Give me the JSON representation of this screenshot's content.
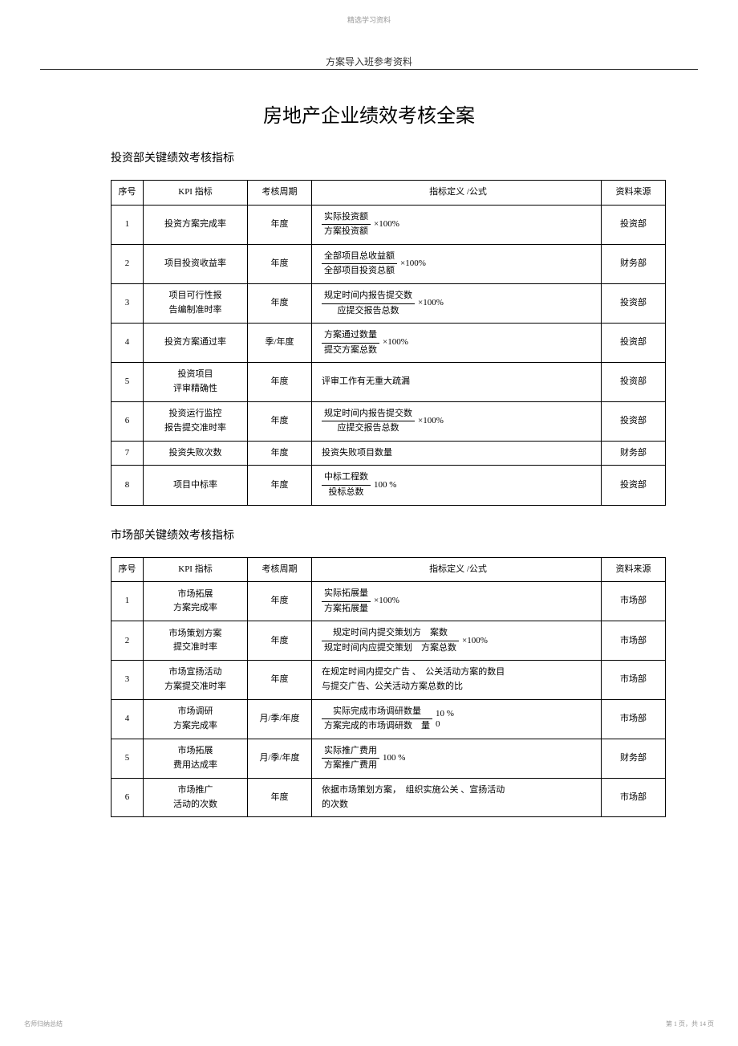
{
  "watermark_top": "精选学习资料",
  "header_center": "方案导入班参考资料",
  "main_title": "房地产企业绩效考核全案",
  "footer_left": "名师归纳总结",
  "footer_right": "第 1 页，共 14 页",
  "section1": {
    "title": "投资部关键绩效考核指标",
    "headers": {
      "num": "序号",
      "kpi": "KPI 指标",
      "period": "考核周期",
      "formula": "指标定义 /公式",
      "source": "资料来源"
    },
    "rows": [
      {
        "n": "1",
        "kpi": "投资方案完成率",
        "period": "年度",
        "frac_num": "实际投资额",
        "frac_den": "方案投资额",
        "mult": "×100%",
        "source": "投资部"
      },
      {
        "n": "2",
        "kpi": "项目投资收益率",
        "period": "年度",
        "frac_num": "全部项目总收益额",
        "frac_den": "全部项目投资总额",
        "mult": "×100%",
        "source": "财务部"
      },
      {
        "n": "3",
        "kpi_l1": "项目可行性报",
        "kpi_l2": "告编制准时率",
        "period": "年度",
        "frac_num": "规定时间内报告提交数",
        "frac_den": "应提交报告总数",
        "mult": "×100%",
        "source": "投资部"
      },
      {
        "n": "4",
        "kpi": "投资方案通过率",
        "period": "季/年度",
        "frac_num": "方案通过数量",
        "frac_den": "提交方案总数",
        "mult": "×100%",
        "source": "投资部"
      },
      {
        "n": "5",
        "kpi_l1": "投资项目",
        "kpi_l2": "评审精确性",
        "period": "年度",
        "text": "评审工作有无重大疏漏",
        "source": "投资部"
      },
      {
        "n": "6",
        "kpi_l1": "投资运行监控",
        "kpi_l2": "报告提交准时率",
        "period": "年度",
        "frac_num": "规定时间内报告提交数",
        "frac_den": "应提交报告总数",
        "mult": "×100%",
        "source": "投资部"
      },
      {
        "n": "7",
        "kpi": "投资失败次数",
        "period": "年度",
        "text": "投资失败项目数量",
        "source": "财务部"
      },
      {
        "n": "8",
        "kpi": "项目中标率",
        "period": "年度",
        "frac_num": "中标工程数",
        "frac_den": "投标总数",
        "mult": "100 %",
        "source": "投资部"
      }
    ]
  },
  "section2": {
    "title": "市场部关键绩效考核指标",
    "headers": {
      "num": "序号",
      "kpi": "KPI 指标",
      "period": "考核周期",
      "formula": "指标定义 /公式",
      "source": "资料来源"
    },
    "rows": [
      {
        "n": "1",
        "kpi_l1": "市场拓展",
        "kpi_l2": "方案完成率",
        "period": "年度",
        "frac_num": "实际拓展量",
        "frac_den": "方案拓展量",
        "mult": "×100%",
        "source": "市场部"
      },
      {
        "n": "2",
        "kpi_l1": "市场策划方案",
        "kpi_l2": "提交准时率",
        "period": "年度",
        "frac_num": "规定时间内提交策划方　案数",
        "frac_den": "规定时间内应提交策划　方案总数",
        "mult": "×100%",
        "source": "市场部"
      },
      {
        "n": "3",
        "kpi_l1": "市场宣扬活动",
        "kpi_l2": "方案提交准时率",
        "period": "年度",
        "text_l1": "在规定时间内提交广告 、　公关活动方案的数目",
        "text_l2": "与提交广告、公关活动方案总数的比",
        "source": "市场部"
      },
      {
        "n": "4",
        "kpi_l1": "市场调研",
        "kpi_l2": "方案完成率",
        "period": "月/季/年度",
        "frac_num": "实际完成市场调研数量",
        "frac_den": "方案完成的市场调研数　量",
        "mult_l1": "10 %",
        "mult_l2": "0",
        "source": "市场部"
      },
      {
        "n": "5",
        "kpi_l1": "市场拓展",
        "kpi_l2": "费用达成率",
        "period": "月/季/年度",
        "frac_num": "实际推广费用",
        "frac_den": "方案推广费用",
        "mult": "100 %",
        "source": "财务部"
      },
      {
        "n": "6",
        "kpi_l1": "市场推广",
        "kpi_l2": "活动的次数",
        "period": "年度",
        "text_l1": "依据市场策划方案，　组织实施公关 、宣扬活动",
        "text_l2": "的次数",
        "source": "市场部"
      }
    ]
  }
}
